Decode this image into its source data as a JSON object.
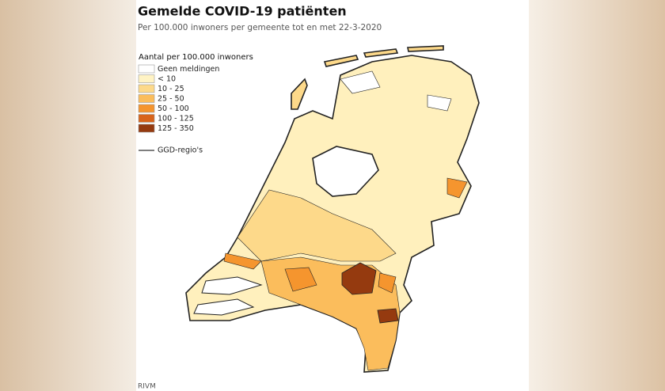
{
  "header": {
    "title": "Gemelde COVID-19 patiënten",
    "subtitle": "Per 100.000 inwoners per gemeente tot en met 22-3-2020"
  },
  "legend": {
    "title": "Aantal per 100.000 inwoners",
    "items": [
      {
        "label": "Geen meldingen",
        "color": "#ffffff"
      },
      {
        "label": "< 10",
        "color": "#fff3c4"
      },
      {
        "label": "10 - 25",
        "color": "#fdd98a"
      },
      {
        "label": "25 - 50",
        "color": "#fbbd5c"
      },
      {
        "label": "50 - 100",
        "color": "#f5952e"
      },
      {
        "label": "100 - 125",
        "color": "#d8641b"
      },
      {
        "label": "125 - 350",
        "color": "#953a0f"
      }
    ],
    "line_label": "GGD-regio's"
  },
  "source": "RIVM"
}
